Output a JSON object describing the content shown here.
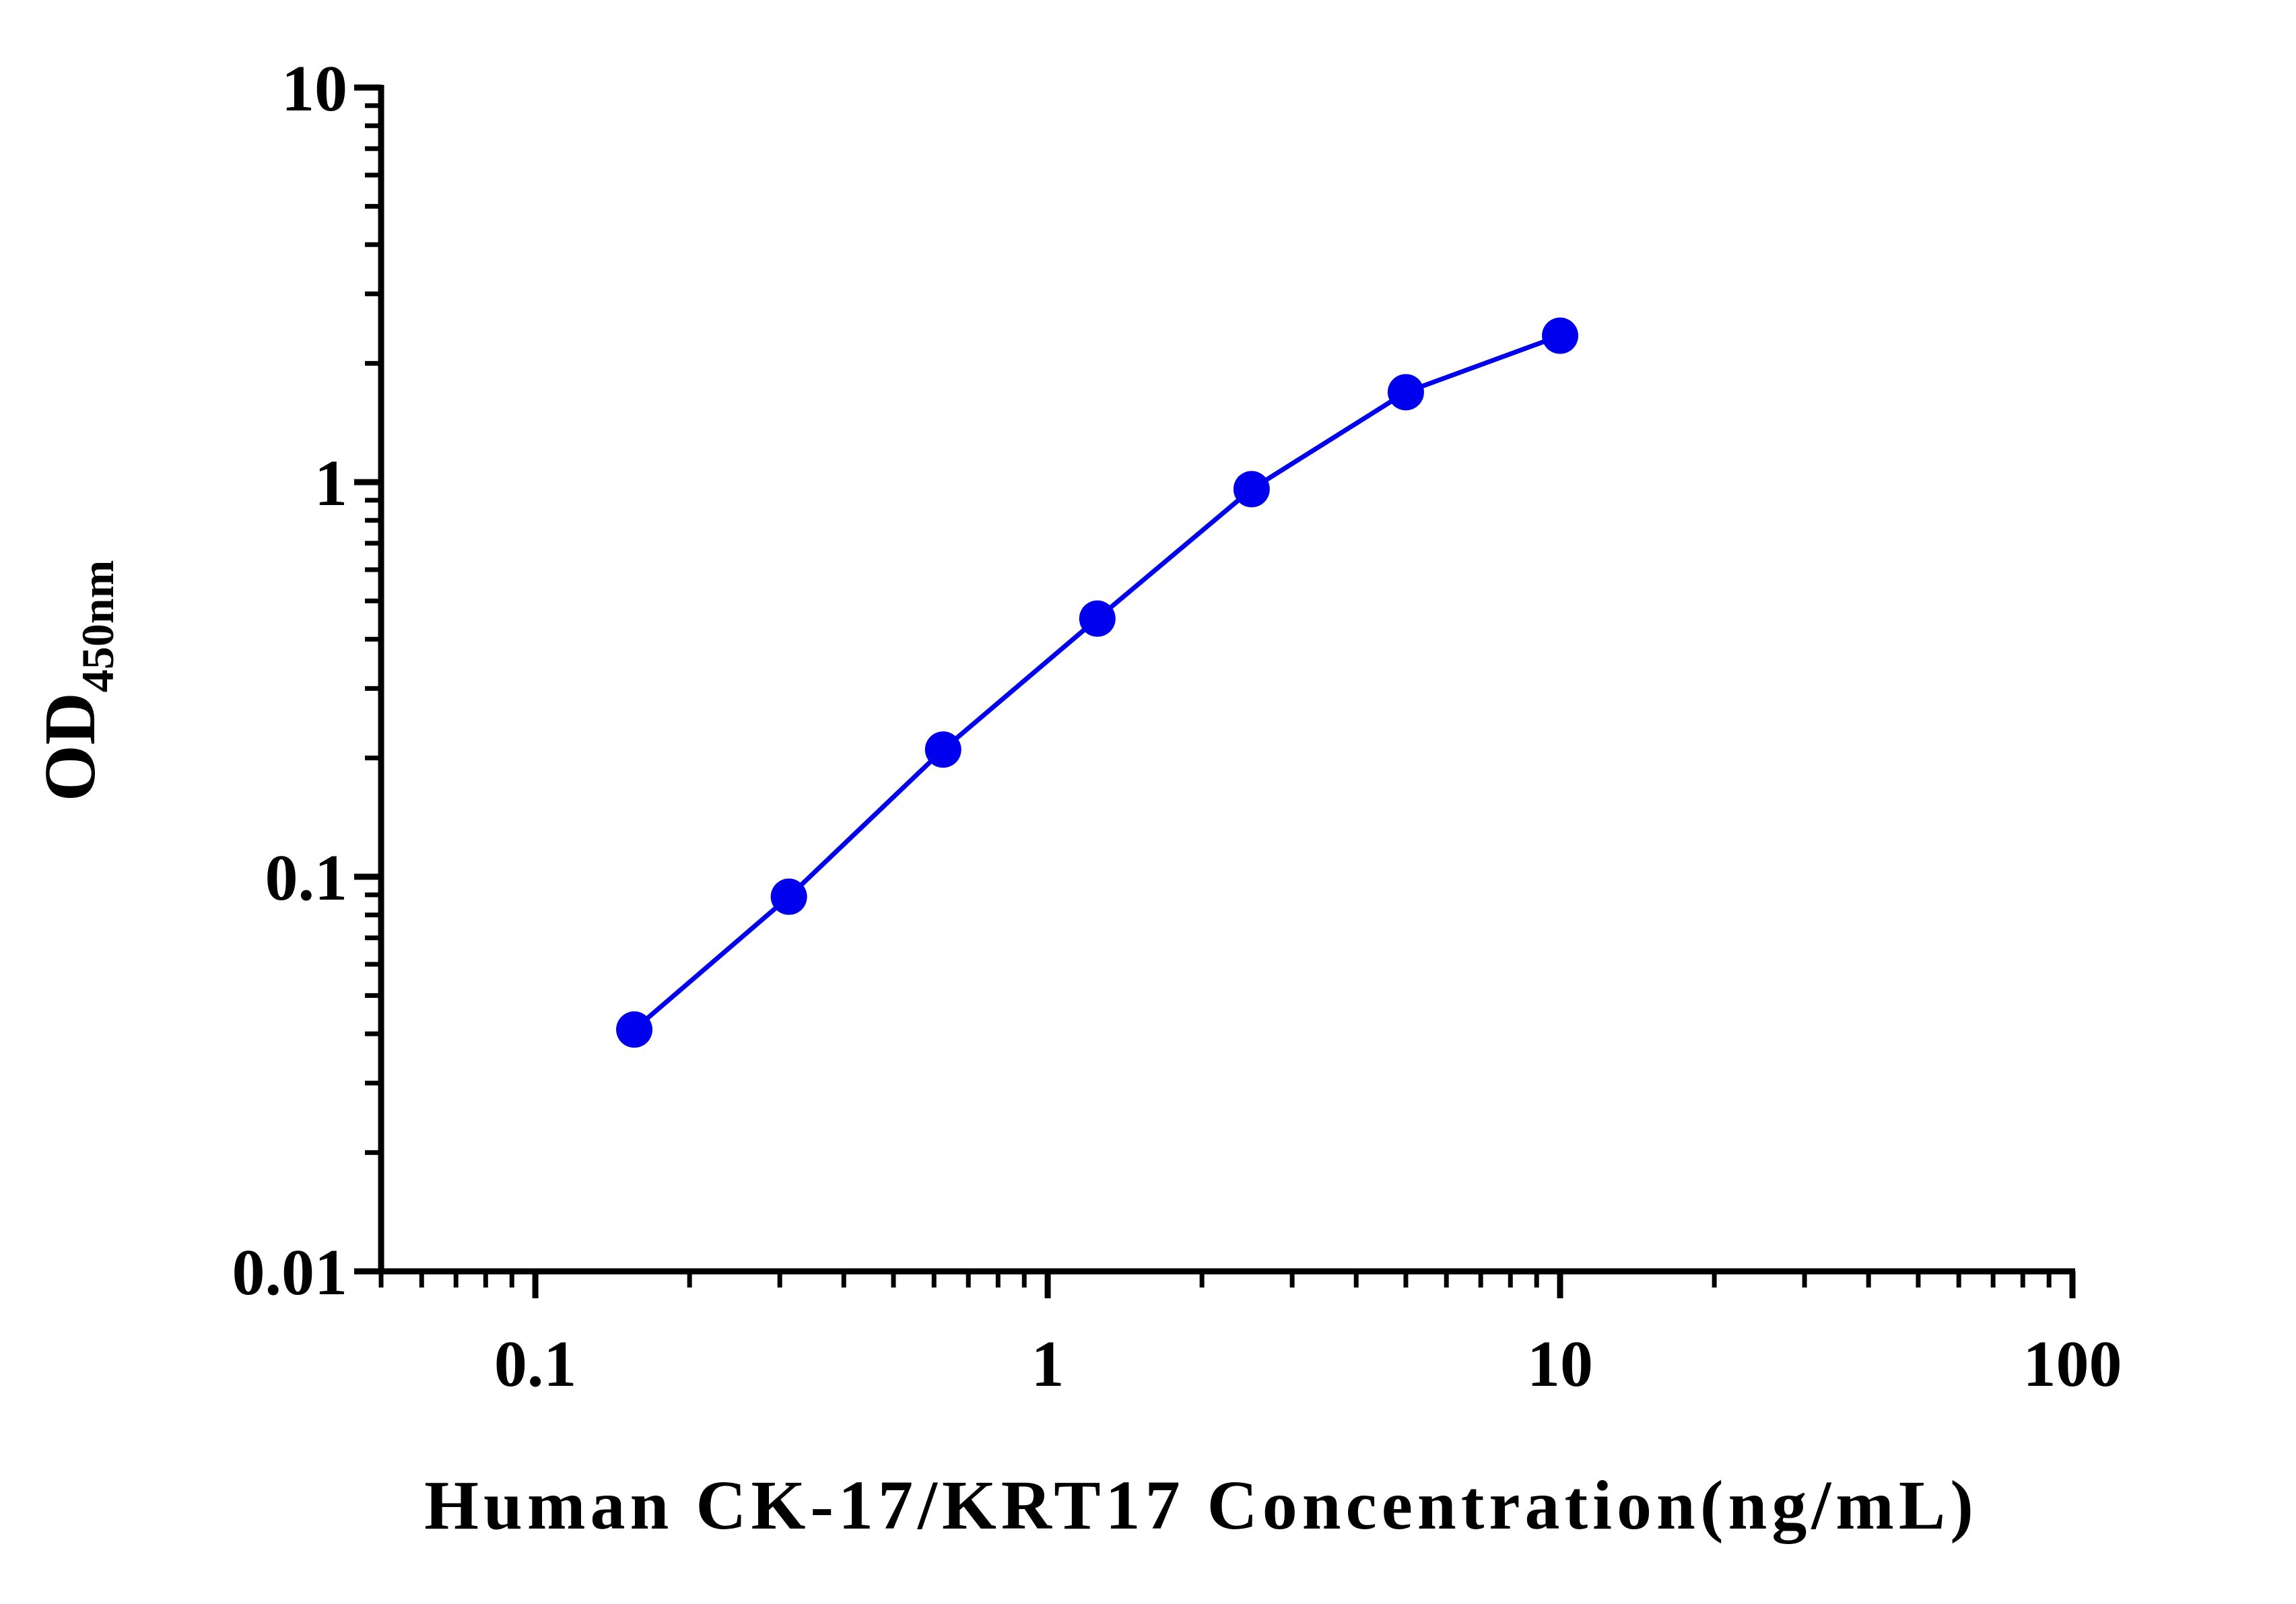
{
  "chart_data": {
    "type": "line",
    "xlabel": "Human CK-17/KRT17 Concentration(ng/mL)",
    "ylabel": "OD",
    "ylabel_subscript": "450nm",
    "x": [
      0.156,
      0.3125,
      0.625,
      1.25,
      2.5,
      5,
      10
    ],
    "series": [
      {
        "color": "#0000ee",
        "values": [
          0.041,
          0.089,
          0.21,
          0.451,
          0.96,
          1.69,
          2.35
        ]
      }
    ],
    "xscale": "log",
    "yscale": "log",
    "xlim": [
      0.05,
      100
    ],
    "xticks": [
      0.1,
      1,
      10,
      100
    ],
    "ylim": [
      0.01,
      10
    ],
    "yticks": [
      0.01,
      0.1,
      1,
      10
    ],
    "minor_ticks": true,
    "markers": true
  }
}
